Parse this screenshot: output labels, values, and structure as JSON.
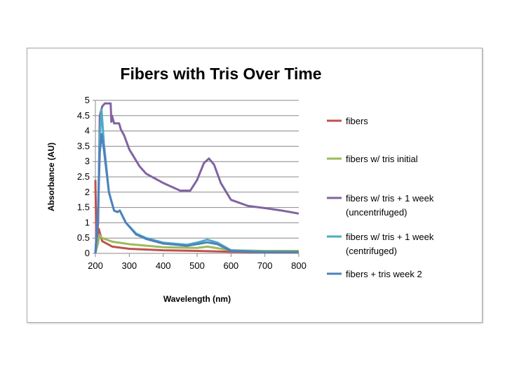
{
  "chart_data": {
    "type": "line",
    "title": "Fibers with Tris Over Time",
    "xlabel": "Wavelength (nm)",
    "ylabel": "Absorbance (AU)",
    "xlim": [
      200,
      800
    ],
    "ylim": [
      0,
      5
    ],
    "xticks": [
      "200",
      "300",
      "400",
      "500",
      "600",
      "700",
      "800"
    ],
    "yticks": [
      "0",
      "0.5",
      "1",
      "1.5",
      "2",
      "2.5",
      "3",
      "3.5",
      "4",
      "4.5",
      "5"
    ],
    "grid": true,
    "legend": "right",
    "series": [
      {
        "name": "fibers",
        "color": "#c0504d",
        "x": [
          200,
          203,
          206,
          210,
          220,
          250,
          300,
          400,
          500,
          600,
          700,
          800
        ],
        "y": [
          2.4,
          0.3,
          0.6,
          0.8,
          0.4,
          0.22,
          0.15,
          0.1,
          0.08,
          0.05,
          0.04,
          0.03
        ]
      },
      {
        "name": "fibers w/ tris initial",
        "color": "#9bbb59",
        "x": [
          200,
          207,
          212,
          220,
          250,
          300,
          400,
          500,
          530,
          600,
          700,
          800
        ],
        "y": [
          0,
          0.3,
          0.6,
          0.5,
          0.38,
          0.3,
          0.2,
          0.18,
          0.22,
          0.1,
          0.08,
          0.08
        ]
      },
      {
        "name": "fibers w/ tris + 1 week (uncentrifuged)",
        "color": "#8064a2",
        "x": [
          200,
          208,
          213,
          220,
          228,
          245,
          247,
          249,
          255,
          270,
          275,
          285,
          300,
          330,
          350,
          400,
          450,
          480,
          500,
          520,
          535,
          550,
          570,
          600,
          650,
          700,
          750,
          800
        ],
        "y": [
          0,
          1,
          4.5,
          4.8,
          4.9,
          4.9,
          4.3,
          4.5,
          4.25,
          4.25,
          4.05,
          3.85,
          3.4,
          2.85,
          2.6,
          2.3,
          2.05,
          2.05,
          2.4,
          2.95,
          3.1,
          2.9,
          2.3,
          1.75,
          1.55,
          1.48,
          1.4,
          1.3
        ]
      },
      {
        "name": "fibers w/ tris + 1 week (centrifuged)",
        "color": "#4bacc6",
        "x": [
          200,
          208,
          213,
          218,
          225,
          240,
          255,
          265,
          272,
          290,
          320,
          350,
          400,
          470,
          510,
          530,
          560,
          600,
          700,
          800
        ],
        "y": [
          0,
          1.5,
          3.8,
          4.7,
          3.6,
          2,
          1.4,
          1.35,
          1.4,
          1.0,
          0.65,
          0.5,
          0.35,
          0.28,
          0.38,
          0.45,
          0.35,
          0.1,
          0.05,
          0.05
        ]
      },
      {
        "name": "fibers + tris week 2",
        "color": "#4f81bd",
        "x": [
          200,
          208,
          213,
          218,
          225,
          240,
          255,
          265,
          272,
          290,
          320,
          350,
          400,
          470,
          510,
          530,
          560,
          600,
          700,
          800
        ],
        "y": [
          0,
          1.5,
          3.3,
          3.9,
          3.4,
          2,
          1.4,
          1.35,
          1.4,
          1.0,
          0.62,
          0.47,
          0.32,
          0.25,
          0.32,
          0.36,
          0.3,
          0.08,
          0.04,
          0.04
        ]
      }
    ],
    "legend_lines": [
      [
        "fibers"
      ],
      [
        "fibers w/ tris initial"
      ],
      [
        "fibers w/ tris + 1 week",
        "(uncentrifuged)"
      ],
      [
        "fibers w/ tris + 1 week",
        "(centrifuged)"
      ],
      [
        "fibers + tris week 2"
      ]
    ]
  }
}
